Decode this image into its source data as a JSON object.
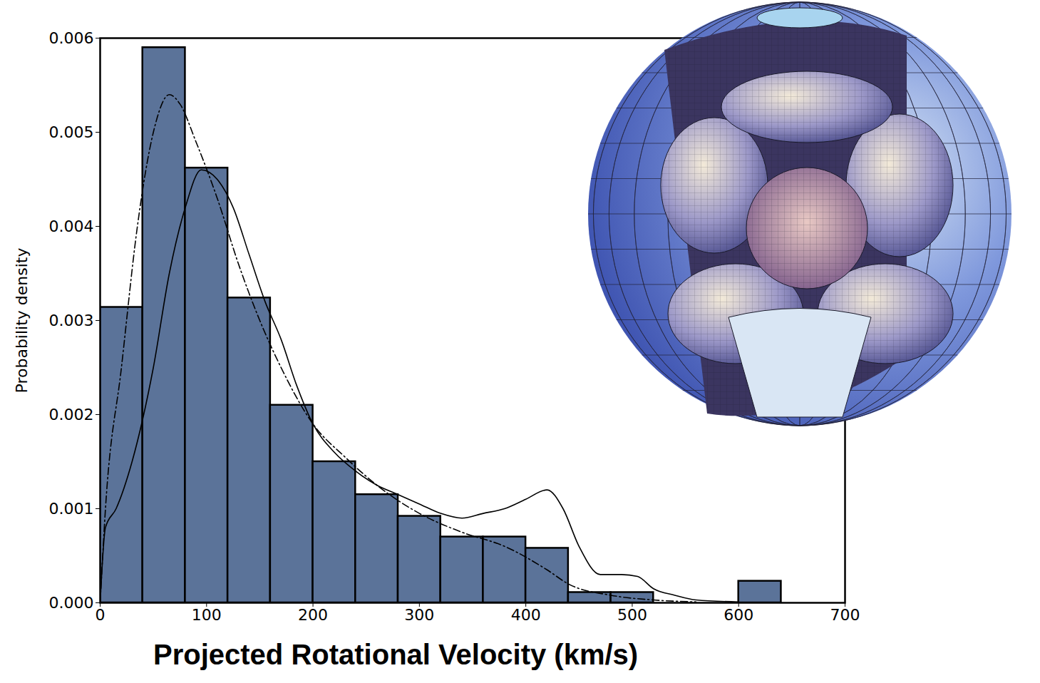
{
  "chart_data": {
    "type": "histogram",
    "xlabel": "Projected Rotational Velocity (km/s)",
    "ylabel": "Probability density",
    "bins": [
      0,
      40,
      80,
      120,
      160,
      200,
      240,
      280,
      320,
      360,
      400,
      440,
      480,
      520,
      560,
      600,
      640
    ],
    "values": [
      0.00314,
      0.0059,
      0.00462,
      0.00324,
      0.0021,
      0.0015,
      0.00115,
      0.00092,
      0.0007,
      0.0007,
      0.00058,
      0.00011,
      0.00011,
      0,
      0,
      0.00023
    ],
    "color": "#5b7399",
    "series": [
      {
        "type": "line",
        "line_style": "solid",
        "color": "#000000",
        "x": [
          0,
          5,
          15,
          30,
          50,
          65,
          80,
          95,
          110,
          125,
          140,
          155,
          170,
          185,
          200,
          220,
          240,
          260,
          280,
          300,
          320,
          340,
          360,
          380,
          400,
          420,
          435,
          450,
          470,
          490,
          505,
          520,
          540,
          560,
          600
        ],
        "values": [
          0,
          0.0008,
          0.001,
          0.0015,
          0.0025,
          0.0035,
          0.0042,
          0.0046,
          0.0045,
          0.0042,
          0.0037,
          0.0032,
          0.0028,
          0.0023,
          0.0019,
          0.0016,
          0.0014,
          0.00125,
          0.00115,
          0.00105,
          0.00095,
          0.0009,
          0.00095,
          0.001,
          0.0011,
          0.0012,
          0.001,
          0.0006,
          0.0003,
          0.0003,
          0.00028,
          0.00015,
          8e-05,
          3e-05,
          1e-05
        ]
      },
      {
        "type": "line",
        "line_style": "dashdot",
        "color": "#000000",
        "x": [
          0,
          5,
          20,
          35,
          50,
          65,
          75,
          90,
          110,
          130,
          150,
          170,
          200,
          230,
          260,
          300,
          340,
          380,
          420,
          440,
          480,
          520,
          560
        ],
        "values": [
          0,
          0.001,
          0.0025,
          0.004,
          0.005,
          0.0054,
          0.0053,
          0.0049,
          0.0043,
          0.0036,
          0.003,
          0.0025,
          0.0019,
          0.00155,
          0.00125,
          0.00095,
          0.00075,
          0.0006,
          0.00035,
          0.0002,
          8e-05,
          3e-05,
          1e-05
        ]
      }
    ],
    "xlim": [
      0,
      700
    ],
    "xticks": [
      0,
      100,
      200,
      300,
      400,
      500,
      600,
      700
    ],
    "ylim": [
      0,
      0.006
    ],
    "yticks": [
      {
        "value": 0,
        "label": "0.000"
      },
      0.001,
      0.002,
      0.003,
      0.004,
      0.005,
      0.006
    ],
    "grid": false
  }
}
